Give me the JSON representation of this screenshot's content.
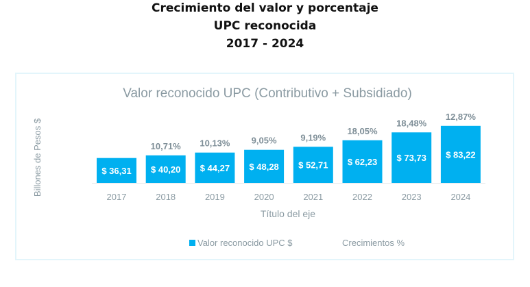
{
  "header": {
    "line1": "Crecimiento del valor y porcentaje",
    "line2": "UPC reconocida",
    "line3": "2017 - 2024"
  },
  "chart_data": {
    "type": "bar",
    "title": "Valor reconocido UPC (Contributivo + Subsidiado)",
    "xlabel": "Título del eje",
    "ylabel": "Billones de Pesos $",
    "categories": [
      "2017",
      "2018",
      "2019",
      "2020",
      "2021",
      "2022",
      "2023",
      "2024"
    ],
    "series": [
      {
        "name": "Valor reconocido UPC $",
        "values": [
          36.31,
          40.2,
          44.27,
          48.28,
          52.71,
          62.23,
          73.73,
          83.22
        ],
        "labels": [
          "$ 36,31",
          "$ 40,20",
          "$ 44,27",
          "$ 48,28",
          "$ 52,71",
          "$ 62,23",
          "$ 73,73",
          "$ 83,22"
        ]
      },
      {
        "name": "Crecimientos %",
        "values": [
          null,
          10.71,
          10.13,
          9.05,
          9.19,
          18.05,
          18.48,
          12.87
        ],
        "labels": [
          "",
          "10,71%",
          "10,13%",
          "9,05%",
          "9,19%",
          "18,05%",
          "18,48%",
          "12,87%"
        ]
      }
    ],
    "legend": "bottom",
    "grid": false,
    "colors": {
      "bar": "#00b0f0",
      "text": "#7f8f98"
    }
  }
}
